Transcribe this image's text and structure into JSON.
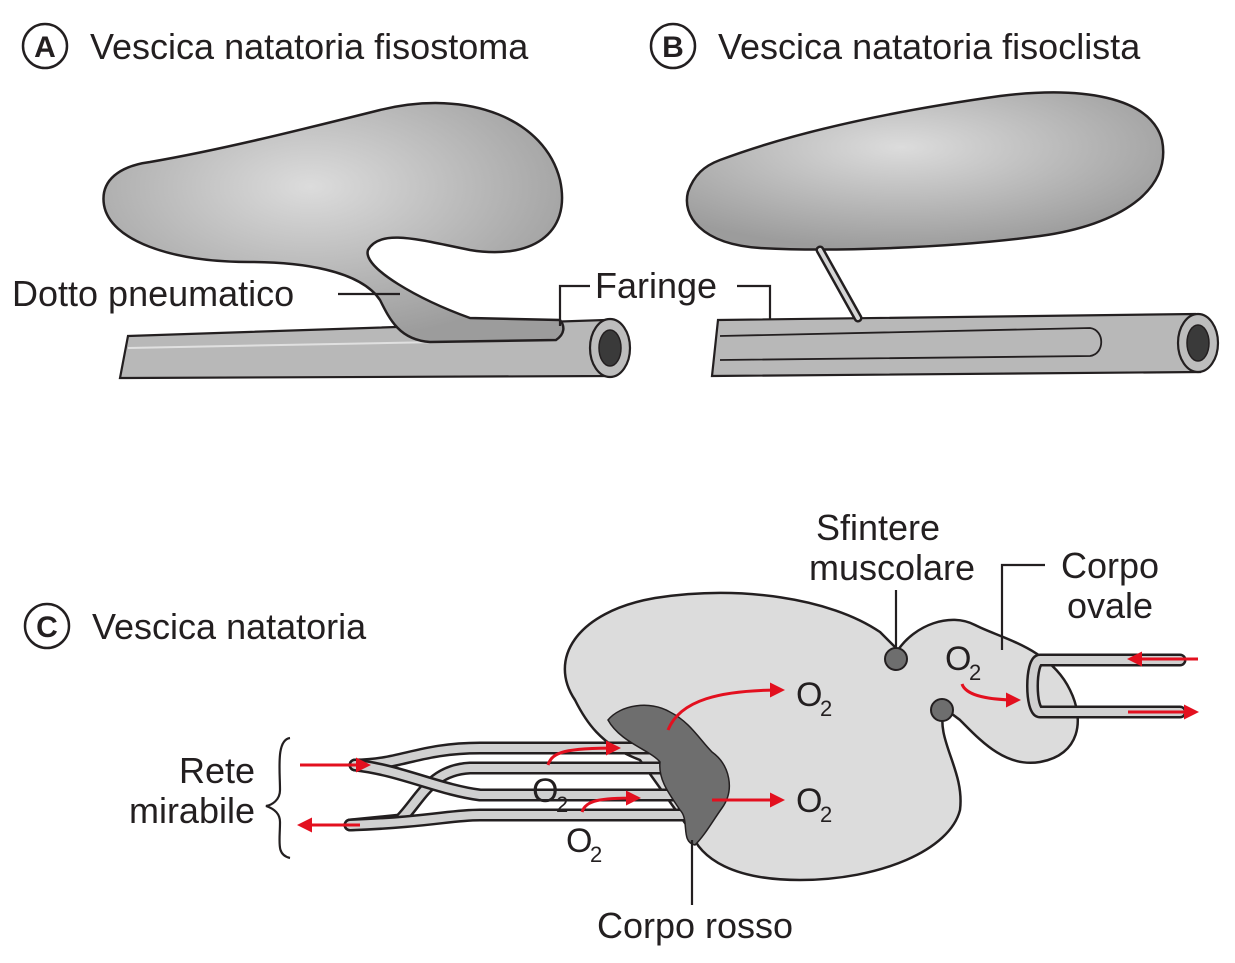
{
  "panels": {
    "a": {
      "badge": "A",
      "title": "Vescica natatoria fisostoma",
      "labels": {
        "duct": "Dotto pneumatico"
      }
    },
    "b": {
      "badge": "B",
      "title": "Vescica natatoria fisoclista"
    },
    "shared_labels": {
      "pharynx": "Faringe"
    },
    "c": {
      "badge": "C",
      "title": "Vescica natatoria",
      "labels": {
        "rete_line1": "Rete",
        "rete_line2": "mirabile",
        "sphincter_line1": "Sfintere",
        "sphincter_line2": "muscolare",
        "oval_line1": "Corpo",
        "oval_line2": "ovale",
        "red_body": "Corpo rosso"
      },
      "oxygen": {
        "symbol": "O",
        "subscript": "2"
      }
    }
  },
  "colors": {
    "bladder_fill": "#a8a8a8",
    "bladder_highlight": "#d8d8d8",
    "bladder_c_fill": "#dcdcdc",
    "red_body_fill": "#6e6e6e",
    "arrow_red": "#e3101f",
    "outline": "#231f20"
  }
}
